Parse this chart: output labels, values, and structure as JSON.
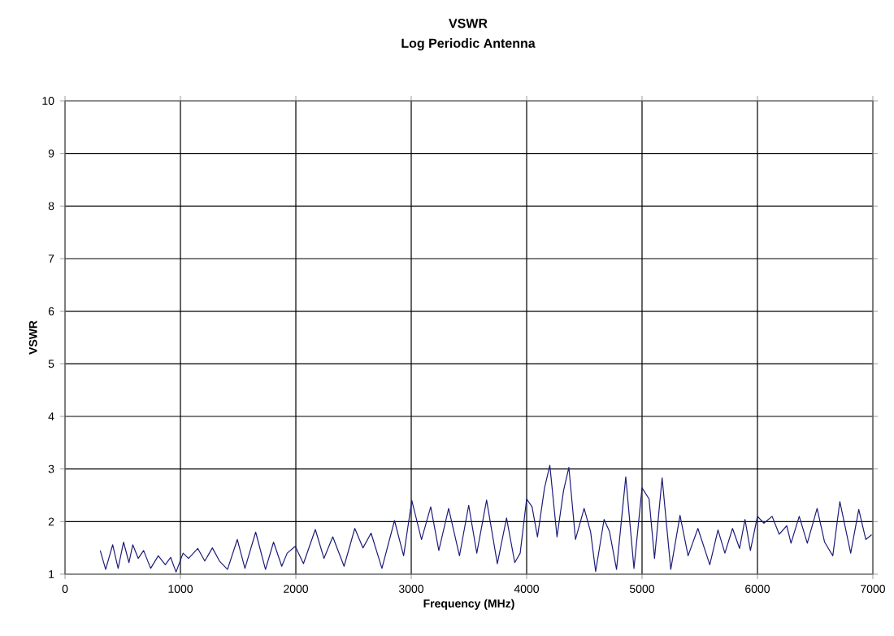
{
  "chart_data": {
    "type": "line",
    "title": "VSWR",
    "subtitle": "Log Periodic Antenna",
    "xlabel": "Frequency (MHz)",
    "ylabel": "VSWR",
    "xlim": [
      0,
      7000
    ],
    "ylim": [
      1,
      10
    ],
    "xticks": [
      0,
      1000,
      2000,
      3000,
      4000,
      5000,
      6000,
      7000
    ],
    "yticks": [
      1,
      2,
      3,
      4,
      5,
      6,
      7,
      8,
      9,
      10
    ],
    "grid": true,
    "series": [
      {
        "color": "#1c1c7a",
        "x": [
          305,
          352,
          413,
          460,
          507,
          554,
          587,
          634,
          681,
          742,
          808,
          869,
          915,
          962,
          1023,
          1070,
          1150,
          1211,
          1277,
          1338,
          1408,
          1493,
          1559,
          1652,
          1737,
          1807,
          1878,
          1925,
          1995,
          2066,
          2169,
          2244,
          2320,
          2418,
          2511,
          2582,
          2652,
          2746,
          2855,
          2934,
          3005,
          3089,
          3169,
          3239,
          3324,
          3418,
          3498,
          3568,
          3653,
          3746,
          3826,
          3897,
          3944,
          4000,
          4047,
          4094,
          4155,
          4201,
          4263,
          4320,
          4366,
          4423,
          4498,
          4554,
          4598,
          4671,
          4718,
          4779,
          4859,
          4930,
          5000,
          5061,
          5108,
          5174,
          5249,
          5329,
          5399,
          5484,
          5587,
          5658,
          5718,
          5784,
          5845,
          5892,
          5939,
          6000,
          6056,
          6127,
          6188,
          6254,
          6291,
          6362,
          6432,
          6517,
          6582,
          6653,
          6714,
          6808,
          6878,
          6939,
          6990
        ],
        "values": [
          1.45,
          1.09,
          1.56,
          1.11,
          1.61,
          1.22,
          1.56,
          1.3,
          1.45,
          1.11,
          1.35,
          1.18,
          1.32,
          1.04,
          1.4,
          1.3,
          1.49,
          1.25,
          1.5,
          1.25,
          1.09,
          1.66,
          1.11,
          1.8,
          1.09,
          1.61,
          1.15,
          1.4,
          1.53,
          1.2,
          1.85,
          1.3,
          1.71,
          1.15,
          1.87,
          1.5,
          1.78,
          1.11,
          2.02,
          1.35,
          2.4,
          1.66,
          2.28,
          1.45,
          2.25,
          1.35,
          2.31,
          1.4,
          2.41,
          1.2,
          2.07,
          1.22,
          1.4,
          2.43,
          2.28,
          1.71,
          2.64,
          3.07,
          1.71,
          2.59,
          3.03,
          1.66,
          2.25,
          1.81,
          1.05,
          2.04,
          1.81,
          1.09,
          2.85,
          1.11,
          2.64,
          2.43,
          1.3,
          2.83,
          1.09,
          2.12,
          1.35,
          1.87,
          1.18,
          1.84,
          1.4,
          1.87,
          1.49,
          2.04,
          1.45,
          2.1,
          1.97,
          2.1,
          1.76,
          1.92,
          1.59,
          2.1,
          1.59,
          2.25,
          1.61,
          1.35,
          2.38,
          1.4,
          2.23,
          1.66,
          1.75
        ]
      }
    ]
  }
}
